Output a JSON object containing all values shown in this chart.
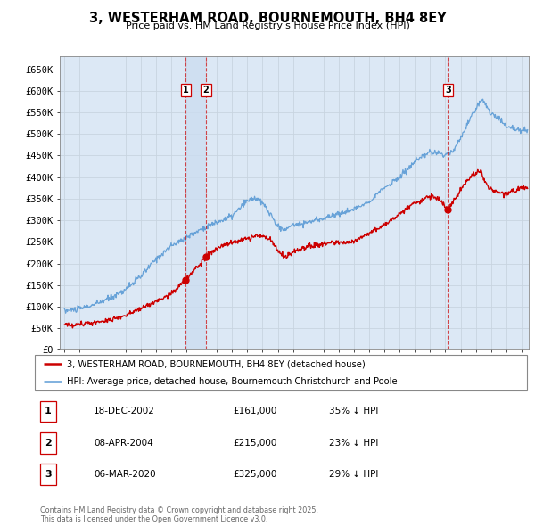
{
  "title": "3, WESTERHAM ROAD, BOURNEMOUTH, BH4 8EY",
  "subtitle": "Price paid vs. HM Land Registry's House Price Index (HPI)",
  "background_color": "#ffffff",
  "grid_color": "#c8d4e0",
  "plot_bg_color": "#dce8f5",
  "hpi_color": "#5b9bd5",
  "price_color": "#cc0000",
  "vline_color": "#cc0000",
  "highlight_color": "#ccddf0",
  "ylim": [
    0,
    680000
  ],
  "yticks": [
    0,
    50000,
    100000,
    150000,
    200000,
    250000,
    300000,
    350000,
    400000,
    450000,
    500000,
    550000,
    600000,
    650000
  ],
  "ytick_labels": [
    "£0",
    "£50K",
    "£100K",
    "£150K",
    "£200K",
    "£250K",
    "£300K",
    "£350K",
    "£400K",
    "£450K",
    "£500K",
    "£550K",
    "£600K",
    "£650K"
  ],
  "xlim_start": 1994.7,
  "xlim_end": 2025.5,
  "transactions": [
    {
      "label": "1",
      "date": 2002.96,
      "price": 161000,
      "text_date": "18-DEC-2002",
      "text_price": "£161,000",
      "text_hpi": "35% ↓ HPI"
    },
    {
      "label": "2",
      "date": 2004.27,
      "price": 215000,
      "text_date": "08-APR-2004",
      "text_price": "£215,000",
      "text_hpi": "23% ↓ HPI"
    },
    {
      "label": "3",
      "date": 2020.17,
      "price": 325000,
      "text_date": "06-MAR-2020",
      "text_price": "£325,000",
      "text_hpi": "29% ↓ HPI"
    }
  ],
  "legend_property_label": "3, WESTERHAM ROAD, BOURNEMOUTH, BH4 8EY (detached house)",
  "legend_hpi_label": "HPI: Average price, detached house, Bournemouth Christchurch and Poole",
  "footer_text": "Contains HM Land Registry data © Crown copyright and database right 2025.\nThis data is licensed under the Open Government Licence v3.0."
}
